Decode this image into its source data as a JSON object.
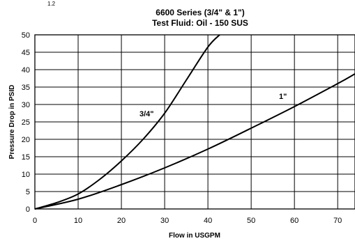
{
  "corner_text": "1.2",
  "chart_data": {
    "type": "line",
    "title": "6600 Series (3/4\" & 1\")",
    "subtitle": "Test Fluid: Oil - 150 SUS",
    "xlabel": "Flow in USGPM",
    "ylabel": "Pressure Drop in PSID",
    "xlim": [
      0,
      74
    ],
    "ylim": [
      0,
      50
    ],
    "xticks": [
      "0",
      "10",
      "20",
      "30",
      "40",
      "50",
      "60",
      "70"
    ],
    "yticks": [
      "0",
      "5",
      "10",
      "15",
      "20",
      "25",
      "30",
      "35",
      "40",
      "45",
      "50"
    ],
    "grid": true,
    "series": [
      {
        "name": "3/4\"",
        "x": [
          0,
          5,
          10,
          15,
          20,
          25,
          30,
          35,
          40,
          42.7
        ],
        "y": [
          0,
          1.8,
          4.3,
          8.5,
          13.8,
          20.0,
          27.5,
          37.0,
          46.5,
          50
        ]
      },
      {
        "name": "1\"",
        "x": [
          0,
          10,
          20,
          30,
          40,
          50,
          60,
          70,
          74
        ],
        "y": [
          0,
          2.8,
          7.0,
          11.8,
          17.2,
          23.2,
          29.4,
          36.0,
          38.8
        ]
      }
    ]
  }
}
